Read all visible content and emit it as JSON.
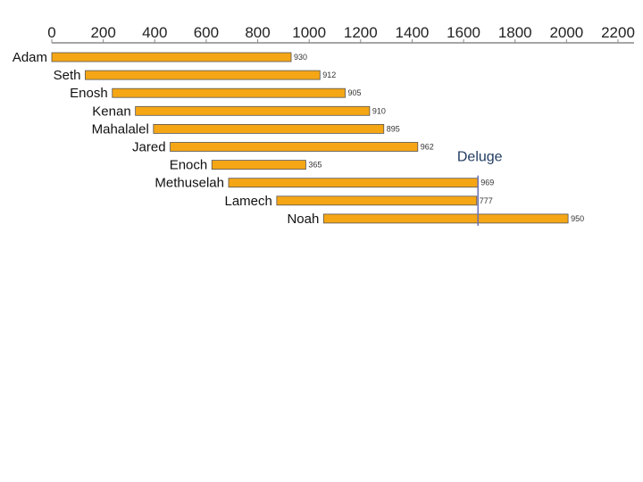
{
  "chart_data": {
    "type": "bar",
    "orientation": "horizontal-timeline",
    "title": "",
    "xlabel": "",
    "ylabel": "",
    "xlim": [
      0,
      2200
    ],
    "x_ticks": [
      0,
      200,
      400,
      600,
      800,
      1000,
      1200,
      1400,
      1600,
      1800,
      2000,
      2200
    ],
    "series": [
      {
        "name": "Adam",
        "start": 0,
        "end": 930,
        "label": "930"
      },
      {
        "name": "Seth",
        "start": 130,
        "end": 1042,
        "label": "912"
      },
      {
        "name": "Enosh",
        "start": 235,
        "end": 1140,
        "label": "905"
      },
      {
        "name": "Kenan",
        "start": 325,
        "end": 1235,
        "label": "910"
      },
      {
        "name": "Mahalalel",
        "start": 395,
        "end": 1290,
        "label": "895"
      },
      {
        "name": "Jared",
        "start": 460,
        "end": 1422,
        "label": "962"
      },
      {
        "name": "Enoch",
        "start": 622,
        "end": 987,
        "label": "365"
      },
      {
        "name": "Methuselah",
        "start": 687,
        "end": 1656,
        "label": "969"
      },
      {
        "name": "Lamech",
        "start": 874,
        "end": 1651,
        "label": "777"
      },
      {
        "name": "Noah",
        "start": 1056,
        "end": 2006,
        "label": "950"
      }
    ],
    "annotations": [
      {
        "text": "Deluge",
        "x": 1656
      }
    ],
    "colors": {
      "bar_fill": "#f5a615",
      "bar_stroke": "#555555",
      "axis_line": "#888888",
      "deluge_line": "#6a6fb5",
      "deluge_text": "#1f3a5f"
    }
  }
}
